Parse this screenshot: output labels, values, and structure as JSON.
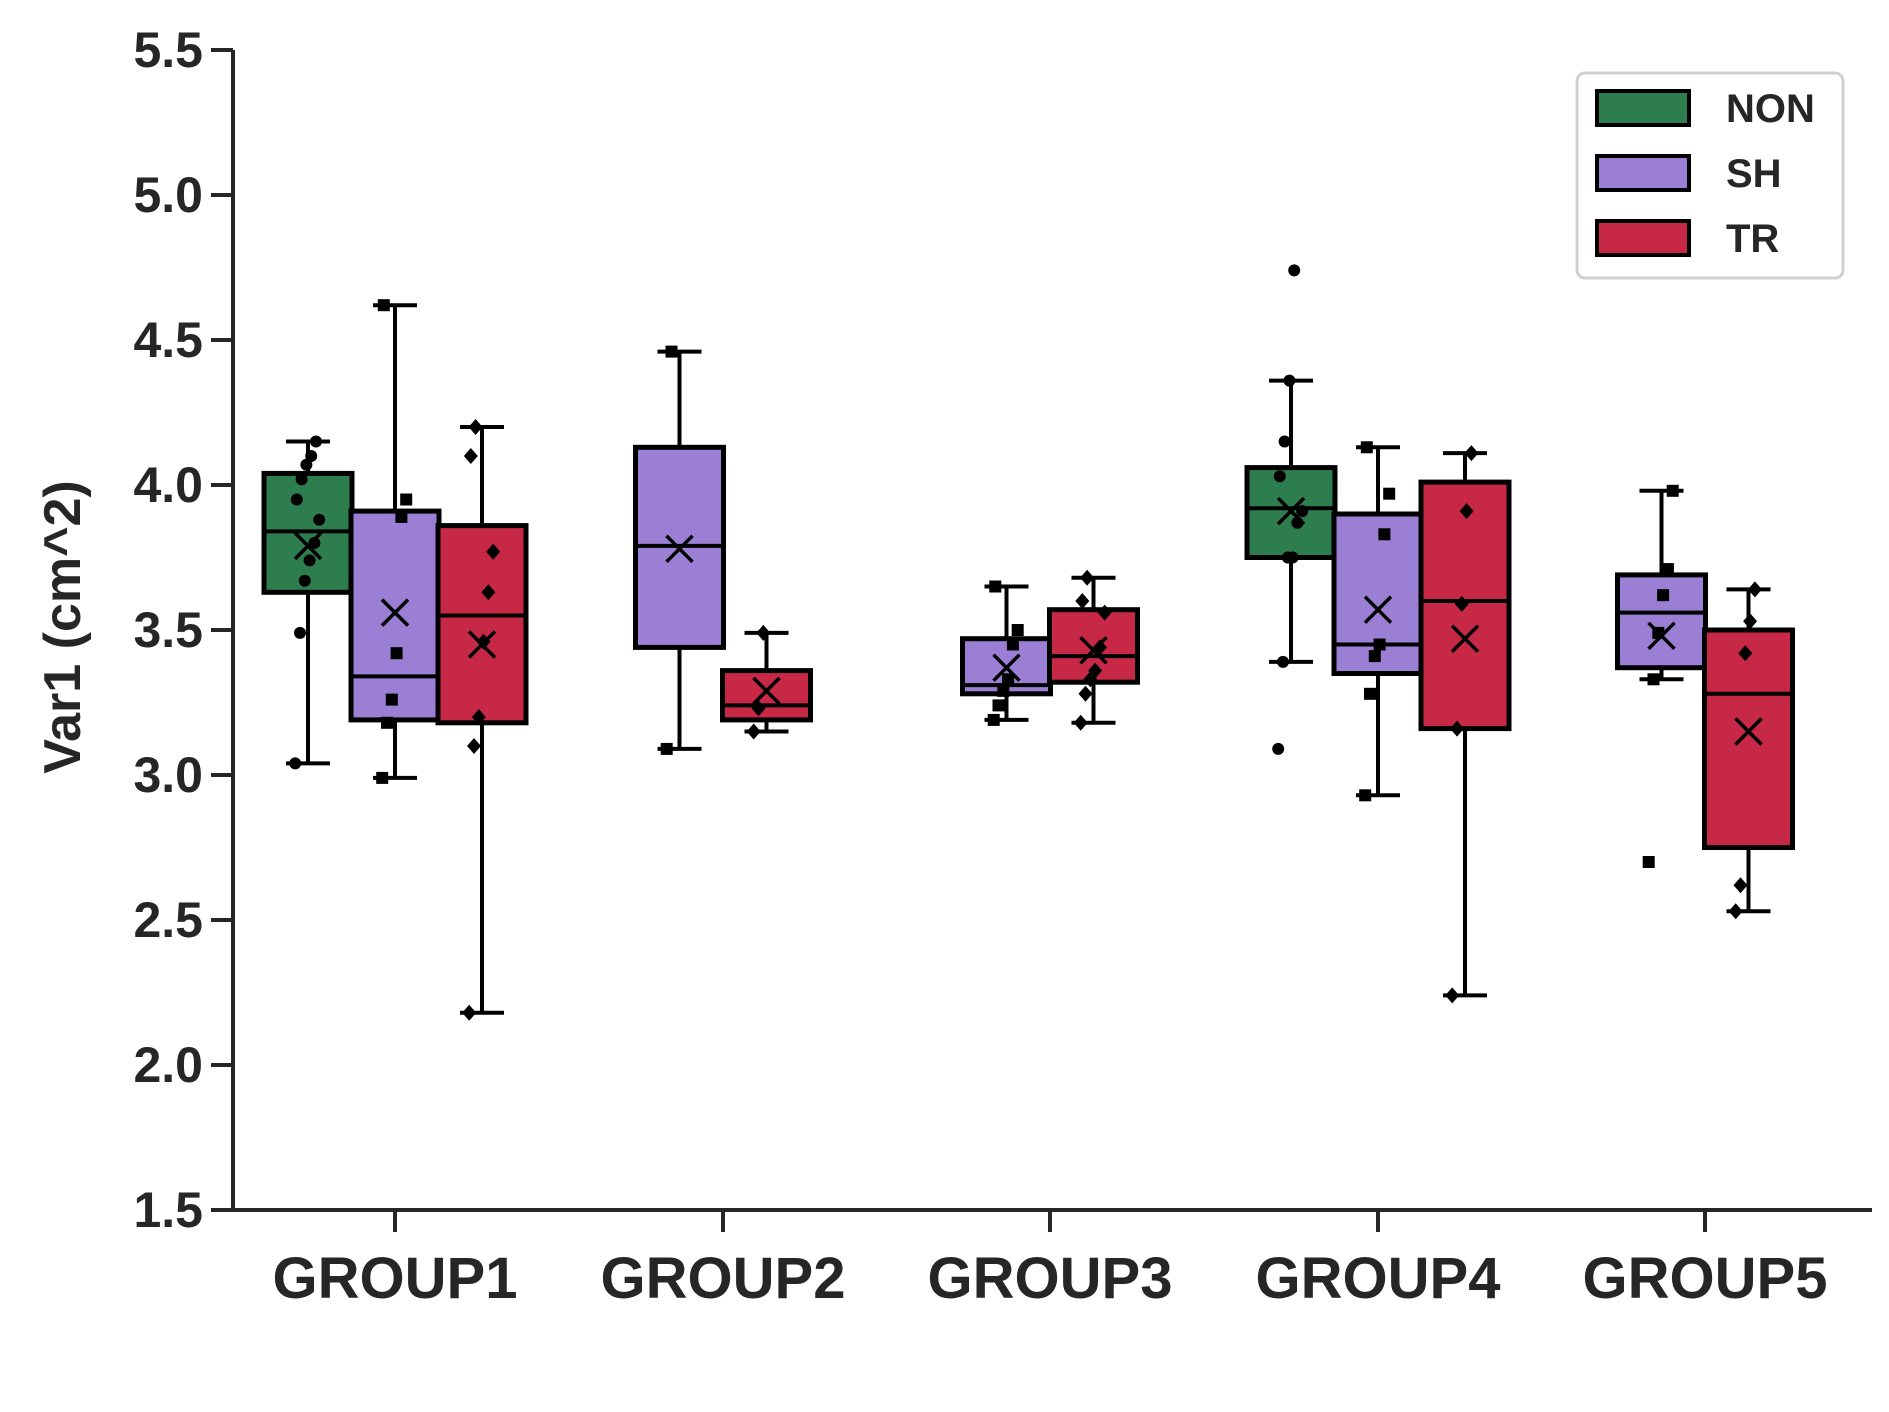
{
  "chart_data": {
    "type": "box",
    "title": "",
    "xlabel": "",
    "ylabel": "Var1 (cm^2)",
    "ylim": [
      1.5,
      5.5
    ],
    "yticks": [
      "1.5",
      "2.0",
      "2.5",
      "3.0",
      "3.5",
      "4.0",
      "4.5",
      "5.0",
      "5.5"
    ],
    "categories": [
      "GROUP1",
      "GROUP2",
      "GROUP3",
      "GROUP4",
      "GROUP5"
    ],
    "legend": {
      "position": "top-right",
      "entries": [
        {
          "name": "NON",
          "color": "#2e7d4f"
        },
        {
          "name": "SH",
          "color": "#9b7fd4"
        },
        {
          "name": "TR",
          "color": "#c62846"
        }
      ]
    },
    "series": [
      {
        "name": "NON",
        "color": "#2e7d4f",
        "marker": "circle",
        "boxes": [
          {
            "category": "GROUP1",
            "whisker_low": 3.04,
            "q1": 3.63,
            "median": 3.84,
            "q3": 4.04,
            "whisker_high": 4.15,
            "mean": 3.79,
            "points": [
              3.04,
              3.49,
              3.67,
              3.74,
              3.8,
              3.88,
              3.95,
              4.02,
              4.07,
              4.1,
              4.15
            ]
          },
          null,
          null,
          {
            "category": "GROUP4",
            "whisker_low": 3.39,
            "q1": 3.75,
            "median": 3.92,
            "q3": 4.06,
            "whisker_high": 4.36,
            "mean": 3.91,
            "points": [
              3.09,
              3.39,
              3.75,
              3.75,
              3.87,
              3.91,
              4.03,
              4.15,
              4.36,
              4.74
            ]
          },
          null
        ]
      },
      {
        "name": "SH",
        "color": "#9b7fd4",
        "marker": "square",
        "boxes": [
          {
            "category": "GROUP1",
            "whisker_low": 2.99,
            "q1": 3.19,
            "median": 3.34,
            "q3": 3.91,
            "whisker_high": 4.62,
            "mean": 3.56,
            "points": [
              2.99,
              3.18,
              3.26,
              3.42,
              3.89,
              3.95,
              4.62
            ]
          },
          {
            "category": "GROUP2",
            "whisker_low": 3.09,
            "q1": 3.44,
            "median": 3.79,
            "q3": 4.13,
            "whisker_high": 4.46,
            "mean": 3.78,
            "points": [
              3.09,
              4.46
            ]
          },
          {
            "category": "GROUP3",
            "whisker_low": 3.19,
            "q1": 3.28,
            "median": 3.31,
            "q3": 3.47,
            "whisker_high": 3.65,
            "mean": 3.37,
            "points": [
              3.19,
              3.24,
              3.29,
              3.33,
              3.45,
              3.5,
              3.65
            ]
          },
          {
            "category": "GROUP4",
            "whisker_low": 2.93,
            "q1": 3.35,
            "median": 3.45,
            "q3": 3.9,
            "whisker_high": 4.13,
            "mean": 3.57,
            "points": [
              2.93,
              3.28,
              3.41,
              3.45,
              3.83,
              3.97,
              4.13
            ]
          },
          {
            "category": "GROUP5",
            "whisker_low": 3.33,
            "q1": 3.37,
            "median": 3.56,
            "q3": 3.69,
            "whisker_high": 3.98,
            "mean": 3.48,
            "points": [
              2.7,
              3.33,
              3.49,
              3.62,
              3.71,
              3.98
            ]
          }
        ]
      },
      {
        "name": "TR",
        "color": "#c62846",
        "marker": "diamond",
        "boxes": [
          {
            "category": "GROUP1",
            "whisker_low": 2.18,
            "q1": 3.18,
            "median": 3.55,
            "q3": 3.86,
            "whisker_high": 4.2,
            "mean": 3.45,
            "points": [
              2.18,
              3.1,
              3.2,
              3.46,
              3.63,
              3.77,
              4.1,
              4.2
            ]
          },
          {
            "category": "GROUP2",
            "whisker_low": 3.15,
            "q1": 3.19,
            "median": 3.24,
            "q3": 3.36,
            "whisker_high": 3.49,
            "mean": 3.29,
            "points": [
              3.15,
              3.23,
              3.49
            ]
          },
          {
            "category": "GROUP3",
            "whisker_low": 3.18,
            "q1": 3.32,
            "median": 3.41,
            "q3": 3.57,
            "whisker_high": 3.68,
            "mean": 3.43,
            "points": [
              3.18,
              3.28,
              3.33,
              3.36,
              3.44,
              3.56,
              3.6,
              3.68
            ]
          },
          {
            "category": "GROUP4",
            "whisker_low": 2.24,
            "q1": 3.16,
            "median": 3.6,
            "q3": 4.01,
            "whisker_high": 4.11,
            "mean": 3.47,
            "points": [
              2.24,
              3.16,
              3.59,
              3.91,
              4.11
            ]
          },
          {
            "category": "GROUP5",
            "whisker_low": 2.53,
            "q1": 2.75,
            "median": 3.28,
            "q3": 3.5,
            "whisker_high": 3.64,
            "mean": 3.15,
            "points": [
              2.53,
              2.62,
              3.42,
              3.53,
              3.64
            ]
          }
        ]
      }
    ]
  }
}
